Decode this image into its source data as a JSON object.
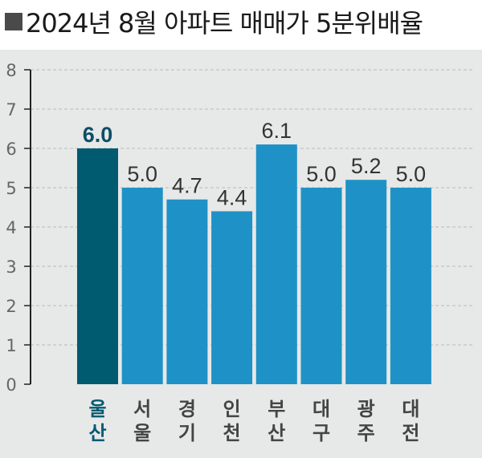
{
  "title": "2024년 8월 아파트 매매가 5분위배율",
  "colors": {
    "highlight": "#005a70",
    "bar": "#1e92c6",
    "highlight_label": "#0e4e66",
    "label": "#333333",
    "tick": "#666666",
    "grid": "#b9bcbd",
    "background": "#e7e8e8"
  },
  "chart_data": {
    "type": "bar",
    "title": "2024년 8월 아파트 매매가 5분위배율",
    "categories": [
      "울산",
      "서울",
      "경기",
      "인천",
      "부산",
      "대구",
      "광주",
      "대전"
    ],
    "values": [
      6.0,
      5.0,
      4.7,
      4.4,
      6.1,
      5.0,
      5.2,
      5.0
    ],
    "value_labels": [
      "6.0",
      "5.0",
      "4.7",
      "4.4",
      "6.1",
      "5.0",
      "5.2",
      "5.0"
    ],
    "highlight_index": 0,
    "ylim": [
      0,
      8
    ],
    "yticks": [
      "0",
      "1",
      "2",
      "3",
      "4",
      "5",
      "6",
      "7",
      "8"
    ],
    "grid": true,
    "legend": "none"
  }
}
